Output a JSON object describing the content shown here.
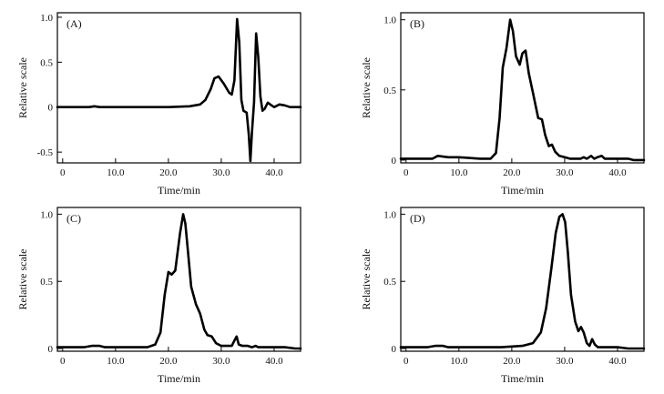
{
  "chart_data": [
    {
      "type": "line",
      "panel_label": "(A)",
      "xlabel": "Time/min",
      "ylabel": "Relative scale",
      "xlim": [
        -1,
        45
      ],
      "ylim": [
        -0.62,
        1.05
      ],
      "xticks": [
        0,
        10,
        20,
        30,
        40
      ],
      "xtick_labels": [
        "0",
        "10.0",
        "20.0",
        "30.0",
        "40.0"
      ],
      "yticks": [
        -0.5,
        0,
        0.5,
        1.0
      ],
      "ytick_labels": [
        "-0.5",
        "0",
        "0.5",
        "1.0"
      ],
      "series": [
        {
          "name": "A",
          "x": [
            -1,
            5,
            6,
            7,
            10,
            15,
            20,
            24,
            26,
            27,
            28,
            28.7,
            29.5,
            30.5,
            31.5,
            32,
            32.5,
            33,
            33.4,
            33.8,
            34.2,
            34.8,
            35.2,
            35.5,
            35.8,
            36.2,
            36.6,
            37,
            37.4,
            37.8,
            38.2,
            38.8,
            39.5,
            40,
            41,
            42,
            43,
            44,
            45
          ],
          "y": [
            0,
            0,
            0.01,
            0,
            0,
            0,
            0,
            0.01,
            0.03,
            0.08,
            0.2,
            0.32,
            0.34,
            0.26,
            0.16,
            0.14,
            0.3,
            0.98,
            0.72,
            0.08,
            -0.04,
            -0.06,
            -0.3,
            -0.6,
            -0.28,
            0.05,
            0.82,
            0.55,
            0.12,
            -0.04,
            -0.02,
            0.05,
            0.02,
            0.0,
            0.03,
            0.02,
            0.0,
            0.0,
            0.0
          ]
        }
      ]
    },
    {
      "type": "line",
      "panel_label": "(B)",
      "xlabel": "Time/min",
      "ylabel": "Relative scale",
      "xlim": [
        -1,
        45
      ],
      "ylim": [
        -0.02,
        1.05
      ],
      "xticks": [
        0,
        10,
        20,
        30,
        40
      ],
      "xtick_labels": [
        "0",
        "10.0",
        "20.0",
        "30.0",
        "40.0"
      ],
      "yticks": [
        0,
        0.5,
        1.0
      ],
      "ytick_labels": [
        "0",
        "0.5",
        "1.0"
      ],
      "series": [
        {
          "name": "B",
          "x": [
            -1,
            3,
            5,
            6,
            8,
            10,
            14,
            16,
            17,
            17.7,
            18.3,
            19,
            19.7,
            20.2,
            20.8,
            21.5,
            22,
            22.6,
            23.2,
            24,
            25,
            25.7,
            26.3,
            27,
            27.6,
            28.2,
            29,
            30,
            31,
            32,
            33,
            33.6,
            34.2,
            35,
            35.6,
            36.2,
            37,
            37.6,
            38.5,
            40,
            41,
            42,
            43,
            44,
            45
          ],
          "y": [
            0.01,
            0.01,
            0.01,
            0.03,
            0.02,
            0.02,
            0.01,
            0.01,
            0.05,
            0.3,
            0.66,
            0.8,
            1.0,
            0.92,
            0.74,
            0.68,
            0.76,
            0.78,
            0.62,
            0.48,
            0.3,
            0.29,
            0.18,
            0.1,
            0.11,
            0.06,
            0.03,
            0.02,
            0.01,
            0.01,
            0.01,
            0.02,
            0.01,
            0.03,
            0.01,
            0.02,
            0.03,
            0.01,
            0.01,
            0.01,
            0.01,
            0.01,
            0.0,
            0.0,
            0.0
          ]
        }
      ]
    },
    {
      "type": "line",
      "panel_label": "(C)",
      "xlabel": "Time/min",
      "ylabel": "Relative scale",
      "xlim": [
        -1,
        45
      ],
      "ylim": [
        -0.02,
        1.05
      ],
      "xticks": [
        0,
        10,
        20,
        30,
        40
      ],
      "xtick_labels": [
        "0",
        "10.0",
        "20.0",
        "30.0",
        "40.0"
      ],
      "yticks": [
        0,
        0.5,
        1.0
      ],
      "ytick_labels": [
        "0",
        "0.5",
        "1.0"
      ],
      "series": [
        {
          "name": "C",
          "x": [
            -1,
            4,
            5.5,
            7,
            8,
            12,
            16,
            17.5,
            18.5,
            19.3,
            20,
            20.6,
            21.3,
            22.2,
            22.8,
            23.2,
            23.7,
            24.3,
            25.2,
            26,
            26.8,
            27.4,
            28.2,
            29,
            30,
            31,
            32,
            32.5,
            32.9,
            33.3,
            34,
            35,
            35.8,
            36.5,
            37,
            38,
            40,
            42,
            44,
            45
          ],
          "y": [
            0.01,
            0.01,
            0.02,
            0.02,
            0.01,
            0.01,
            0.01,
            0.03,
            0.12,
            0.4,
            0.57,
            0.55,
            0.58,
            0.86,
            1.0,
            0.93,
            0.72,
            0.46,
            0.33,
            0.26,
            0.14,
            0.1,
            0.09,
            0.04,
            0.02,
            0.02,
            0.02,
            0.06,
            0.09,
            0.03,
            0.02,
            0.02,
            0.01,
            0.02,
            0.01,
            0.01,
            0.01,
            0.01,
            0.0,
            0.0
          ]
        }
      ]
    },
    {
      "type": "line",
      "panel_label": "(D)",
      "xlabel": "Time/min",
      "ylabel": "Relative scale",
      "xlim": [
        -1,
        45
      ],
      "ylim": [
        -0.02,
        1.05
      ],
      "xticks": [
        0,
        10,
        20,
        30,
        40
      ],
      "xtick_labels": [
        "0",
        "10.0",
        "20.0",
        "30.0",
        "40.0"
      ],
      "yticks": [
        0,
        0.5,
        1.0
      ],
      "ytick_labels": [
        "0",
        "0.5",
        "1.0"
      ],
      "series": [
        {
          "name": "D",
          "x": [
            -1,
            4,
            5.5,
            7,
            8,
            12,
            18,
            22,
            24,
            25.5,
            26.5,
            27.5,
            28.3,
            29,
            29.6,
            30.1,
            30.6,
            31.2,
            32,
            32.6,
            33.1,
            33.6,
            34.2,
            34.7,
            35.2,
            35.7,
            36.3,
            37,
            38,
            40,
            42,
            44,
            45
          ],
          "y": [
            0.01,
            0.01,
            0.02,
            0.02,
            0.01,
            0.01,
            0.01,
            0.02,
            0.04,
            0.12,
            0.3,
            0.6,
            0.86,
            0.98,
            1.0,
            0.94,
            0.72,
            0.4,
            0.2,
            0.13,
            0.16,
            0.12,
            0.04,
            0.02,
            0.07,
            0.03,
            0.01,
            0.01,
            0.01,
            0.01,
            0.0,
            0.0,
            0.0
          ]
        }
      ]
    }
  ]
}
